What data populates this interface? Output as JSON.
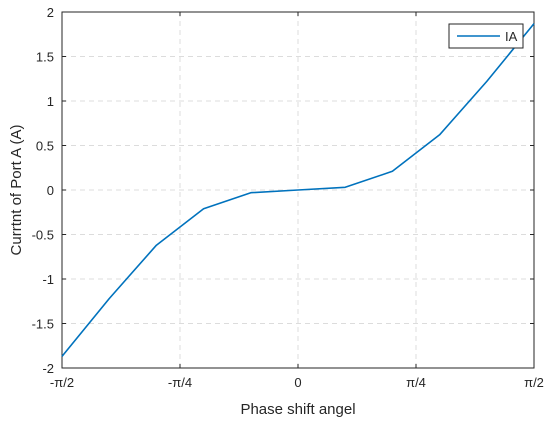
{
  "chart_data": {
    "type": "line",
    "xlabel": "Phase shift angel",
    "ylabel": "Currtnt of Port A (A)",
    "xlim": [
      -1.5708,
      1.5708
    ],
    "ylim": [
      -2,
      2
    ],
    "x_ticks": [
      {
        "value": -1.5708,
        "label": "-π/2"
      },
      {
        "value": -0.7854,
        "label": "-π/4"
      },
      {
        "value": 0,
        "label": "0"
      },
      {
        "value": 0.7854,
        "label": "π/4"
      },
      {
        "value": 1.5708,
        "label": "π/2"
      }
    ],
    "y_ticks": [
      {
        "value": -2,
        "label": "-2"
      },
      {
        "value": -1.5,
        "label": "-1.5"
      },
      {
        "value": -1,
        "label": "-1"
      },
      {
        "value": -0.5,
        "label": "-0.5"
      },
      {
        "value": 0,
        "label": "0"
      },
      {
        "value": 0.5,
        "label": "0.5"
      },
      {
        "value": 1,
        "label": "1"
      },
      {
        "value": 1.5,
        "label": "1.5"
      },
      {
        "value": 2,
        "label": "2"
      }
    ],
    "grid": true,
    "legend_position": "top-right",
    "series": [
      {
        "name": "IA",
        "color": "#0072BD",
        "x": [
          -1.5708,
          -1.2566,
          -0.9425,
          -0.6283,
          -0.3142,
          0,
          0.3142,
          0.6283,
          0.9425,
          1.2566,
          1.5708
        ],
        "y": [
          -1.87,
          -1.22,
          -0.62,
          -0.21,
          -0.03,
          0,
          0.03,
          0.21,
          0.62,
          1.22,
          1.87
        ]
      }
    ]
  }
}
